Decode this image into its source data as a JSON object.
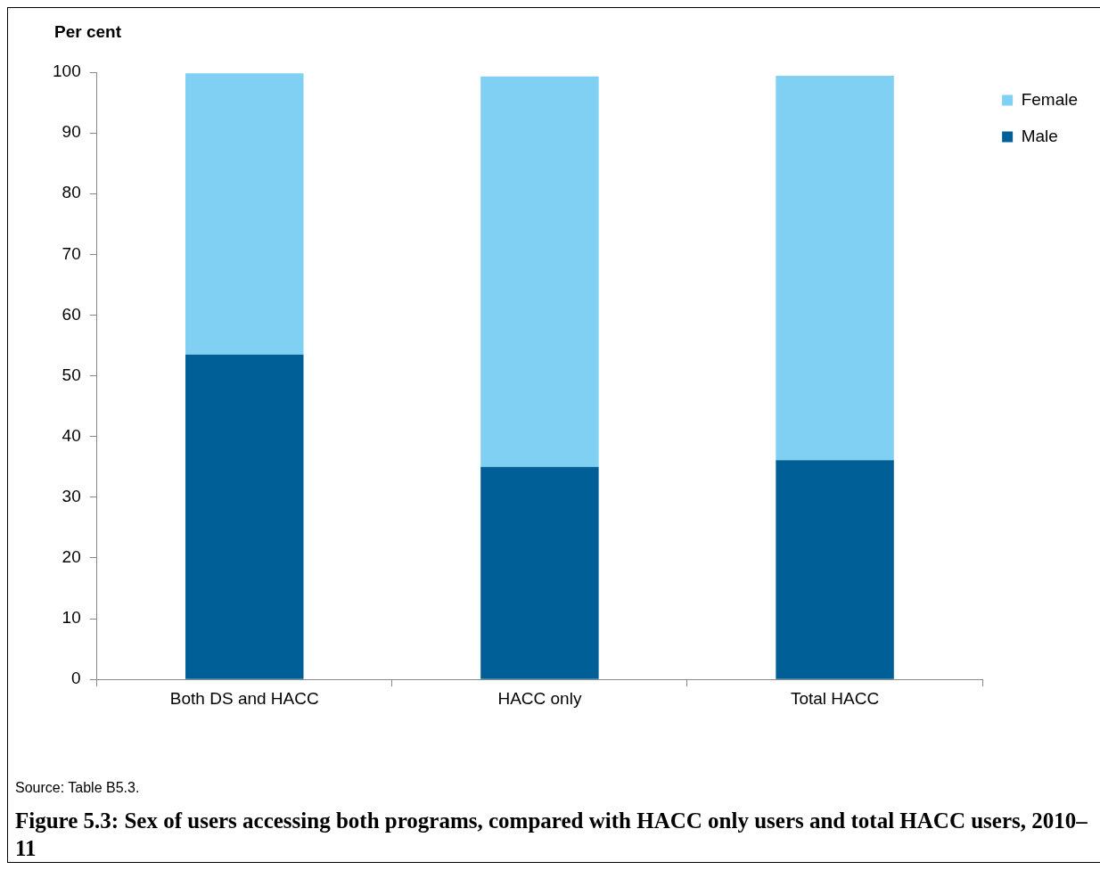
{
  "chart_data": {
    "type": "bar",
    "title": "Figure 5.3: Sex of users accessing both programs, compared with HACC only users and total HACC users, 2010–11",
    "ylabel": "Per cent",
    "annotations": [
      "Source: Table B5.3."
    ],
    "categories": [
      "Both DS and HACC",
      "HACC only",
      "Total HACC"
    ],
    "stacked": true,
    "legend": "right",
    "series": [
      {
        "name": "Male",
        "color": "#005f96",
        "values": [
          53.5,
          35.0,
          36.1
        ]
      },
      {
        "name": "Female",
        "color": "#80d0f4",
        "values": [
          46.3,
          64.3,
          63.3
        ]
      }
    ],
    "ylim": [
      0,
      100
    ],
    "yticks": [
      0,
      10,
      20,
      30,
      40,
      50,
      60,
      70,
      80,
      90,
      100
    ]
  }
}
